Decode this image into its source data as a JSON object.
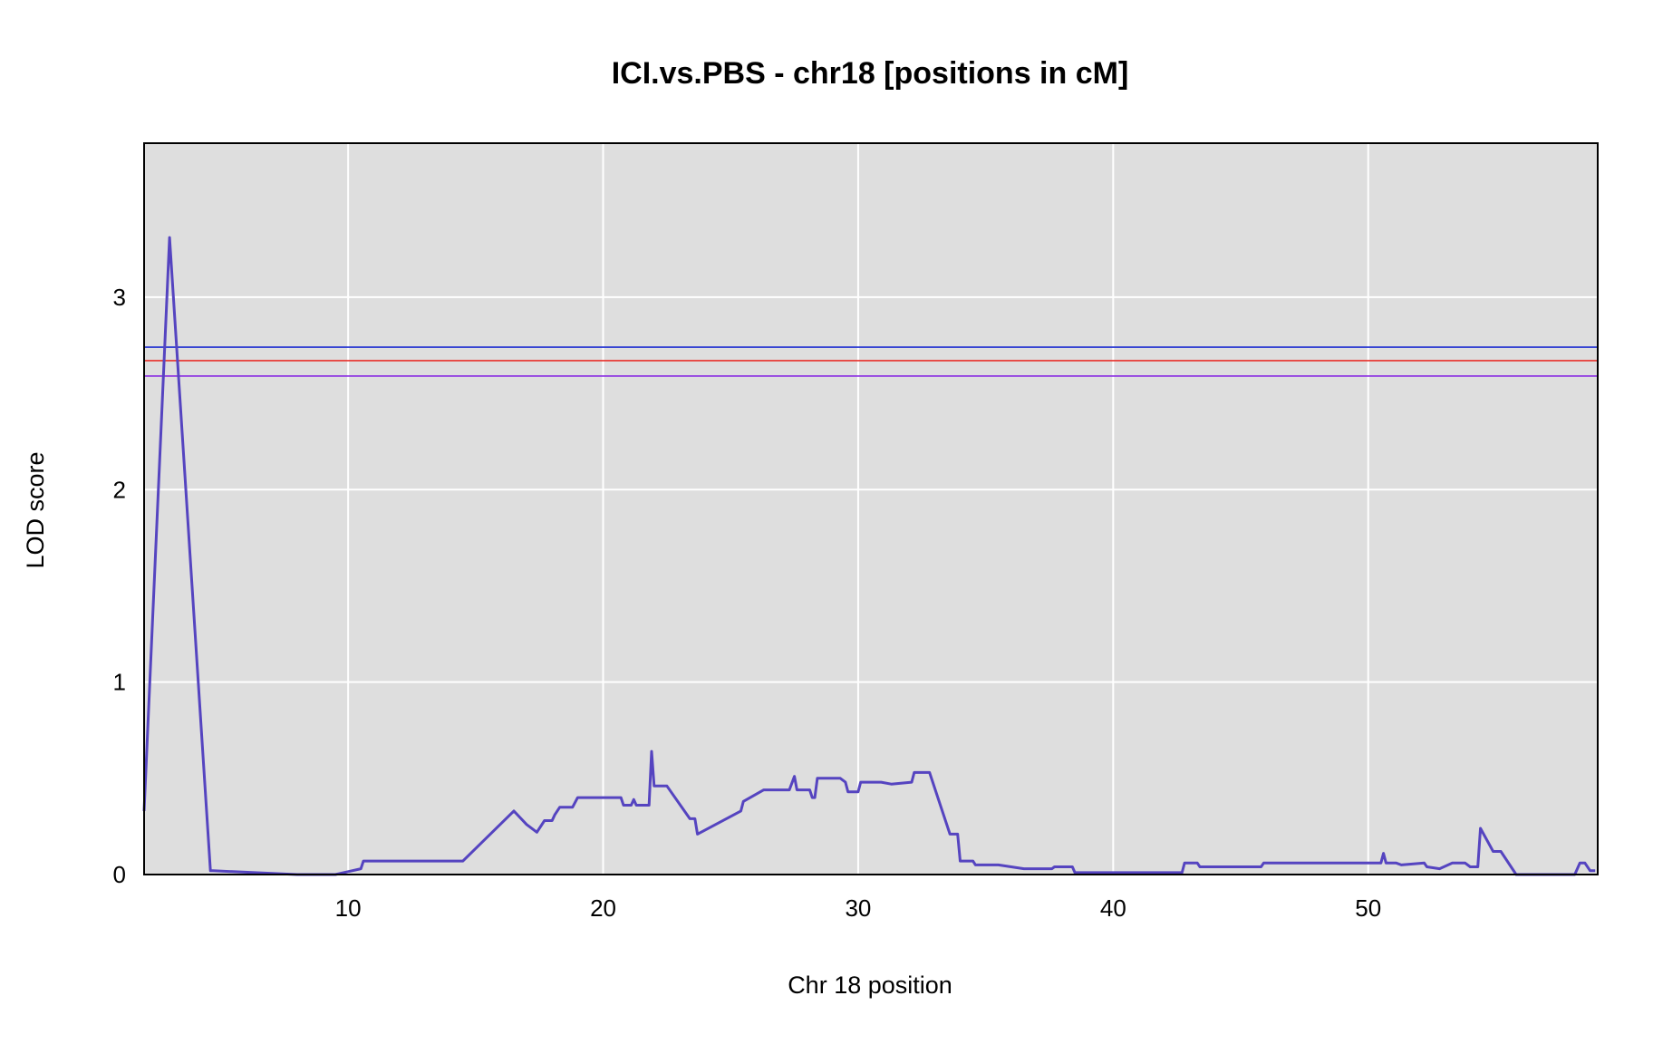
{
  "chart_data": {
    "type": "line",
    "title": "ICI.vs.PBS - chr18 [positions in cM]",
    "xlabel": "Chr 18 position",
    "ylabel": "LOD score",
    "xlim": [
      2,
      59
    ],
    "ylim": [
      0,
      3.8
    ],
    "xticks": [
      10,
      20,
      30,
      40,
      50
    ],
    "yticks": [
      0,
      1,
      2,
      3
    ],
    "grid": true,
    "background": "#dedede",
    "grid_color": "#ffffff",
    "line_color": "#5544c0",
    "thresholds": [
      {
        "value": 2.74,
        "color": "#1f2fd0"
      },
      {
        "value": 2.67,
        "color": "#e8302a"
      },
      {
        "value": 2.59,
        "color": "#8a2be2"
      }
    ],
    "series": [
      {
        "x": [
          2.0,
          3.0,
          4.6,
          4.7,
          8.0,
          9.5,
          10.5,
          10.6,
          12.0,
          14.5,
          16.5,
          17.0,
          17.4,
          17.7,
          18.0,
          18.1,
          18.3,
          18.8,
          19.0,
          20.7,
          20.8,
          21.1,
          21.2,
          21.3,
          21.8,
          21.9,
          22.0,
          22.1,
          22.4,
          22.5,
          23.4,
          23.6,
          23.7,
          25.4,
          25.5,
          26.3,
          27.3,
          27.5,
          27.6,
          28.1,
          28.2,
          28.3,
          28.4,
          29.3,
          29.5,
          29.6,
          30.0,
          30.1,
          30.9,
          31.3,
          32.1,
          32.2,
          32.8,
          33.6,
          33.9,
          34.0,
          34.5,
          34.6,
          35.5,
          36.5,
          37.6,
          37.7,
          38.4,
          38.5,
          42.7,
          42.8,
          43.3,
          43.4,
          45.8,
          45.9,
          50.5,
          50.6,
          50.7,
          51.1,
          51.3,
          52.2,
          52.3,
          52.8,
          53.3,
          53.8,
          54.0,
          54.3,
          54.4,
          54.9,
          55.2,
          55.8,
          56.0,
          58.1,
          58.3,
          58.5,
          58.7,
          58.9
        ],
        "y": [
          0.33,
          3.31,
          0.02,
          0.02,
          0.0,
          0.0,
          0.03,
          0.07,
          0.07,
          0.07,
          0.33,
          0.26,
          0.22,
          0.28,
          0.28,
          0.31,
          0.35,
          0.35,
          0.4,
          0.4,
          0.36,
          0.36,
          0.39,
          0.36,
          0.36,
          0.64,
          0.46,
          0.46,
          0.46,
          0.46,
          0.29,
          0.29,
          0.21,
          0.33,
          0.38,
          0.44,
          0.44,
          0.51,
          0.44,
          0.44,
          0.4,
          0.4,
          0.5,
          0.5,
          0.48,
          0.43,
          0.43,
          0.48,
          0.48,
          0.47,
          0.48,
          0.53,
          0.53,
          0.21,
          0.21,
          0.07,
          0.07,
          0.05,
          0.05,
          0.03,
          0.03,
          0.04,
          0.04,
          0.01,
          0.01,
          0.06,
          0.06,
          0.04,
          0.04,
          0.06,
          0.06,
          0.11,
          0.06,
          0.06,
          0.05,
          0.06,
          0.04,
          0.03,
          0.06,
          0.06,
          0.04,
          0.04,
          0.24,
          0.12,
          0.12,
          0.0,
          0.0,
          0.0,
          0.06,
          0.06,
          0.02,
          0.02
        ]
      }
    ]
  }
}
